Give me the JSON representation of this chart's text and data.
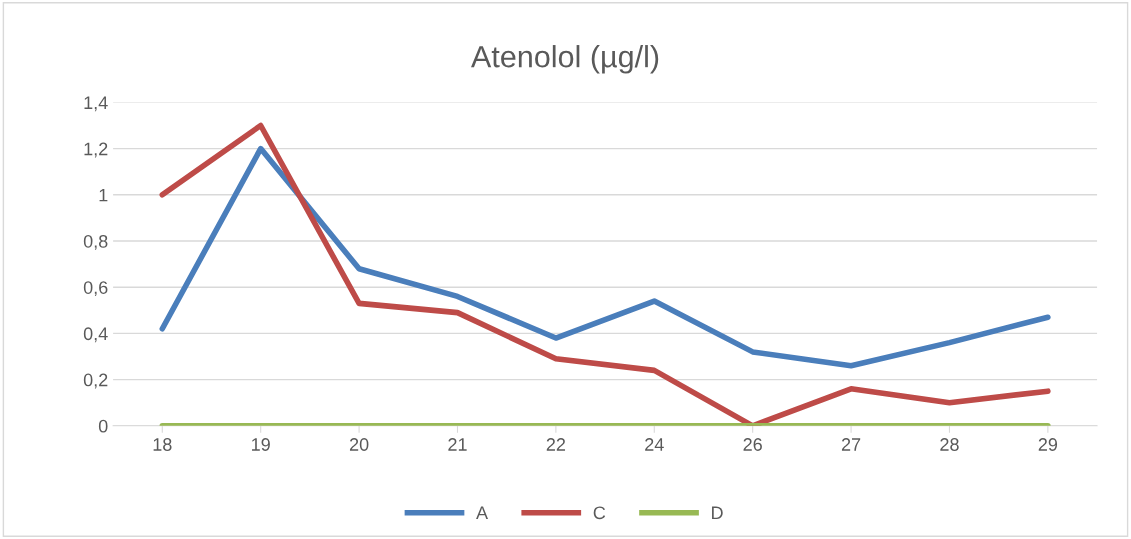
{
  "chart_data": {
    "type": "line",
    "title": "Atenolol (µg/l)",
    "categories": [
      "18",
      "19",
      "20",
      "21",
      "22",
      "24",
      "26",
      "27",
      "28",
      "29"
    ],
    "series": [
      {
        "name": "A",
        "color": "#4a7ebb",
        "values": [
          0.42,
          1.2,
          0.68,
          0.56,
          0.38,
          0.54,
          0.32,
          0.26,
          0.36,
          0.47
        ]
      },
      {
        "name": "C",
        "color": "#be4b48",
        "values": [
          1.0,
          1.3,
          0.53,
          0.49,
          0.29,
          0.24,
          0.0,
          0.16,
          0.1,
          0.15
        ]
      },
      {
        "name": "D",
        "color": "#98b954",
        "values": [
          0,
          0,
          0,
          0,
          0,
          0,
          0,
          0,
          0,
          0
        ]
      }
    ],
    "ylim": [
      0,
      1.4
    ],
    "yticks": [
      0,
      {
        "value": 0.2,
        "label": "0,2"
      },
      {
        "value": 0.4,
        "label": "0,4"
      },
      {
        "value": 0.6,
        "label": "0,6"
      },
      {
        "value": 0.8,
        "label": "0,8"
      },
      1,
      {
        "value": 1.2,
        "label": "1,2"
      },
      {
        "value": 1.4,
        "label": "1,4"
      }
    ],
    "grid": "y",
    "legend": "bottom",
    "marker": "none",
    "line_style": "solid"
  }
}
